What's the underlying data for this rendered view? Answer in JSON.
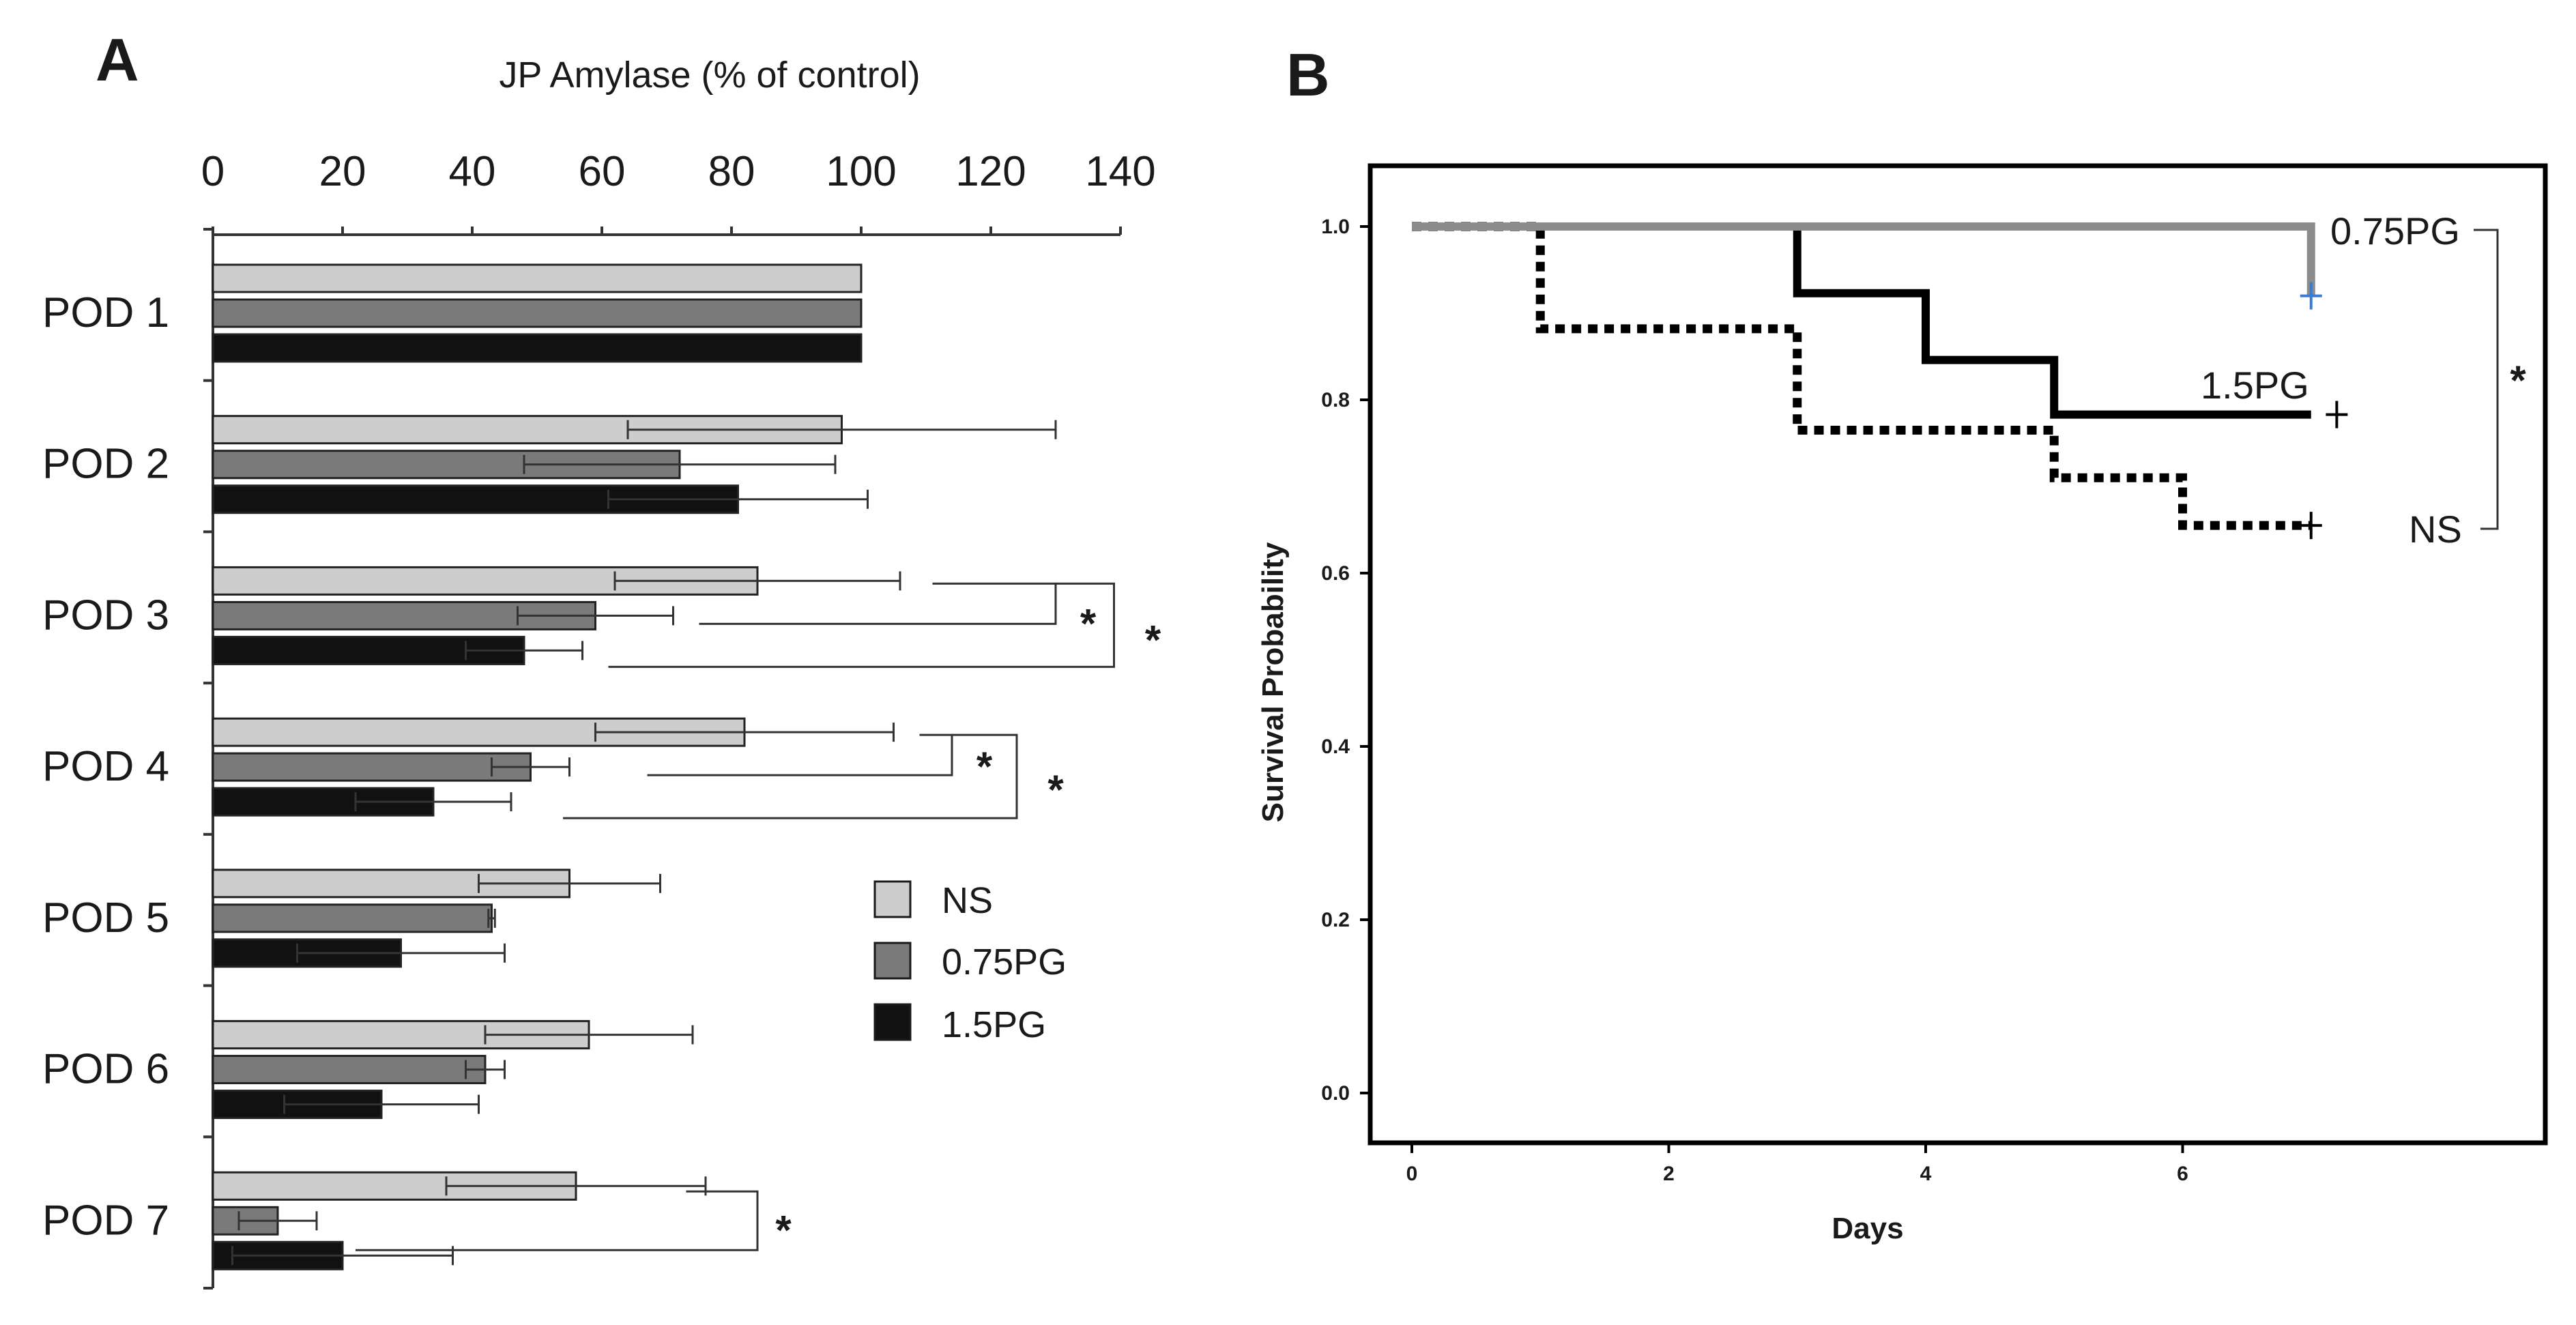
{
  "panels": {
    "a_letter": "A",
    "b_letter": "B"
  },
  "legend": [
    {
      "label": "NS",
      "color": "#cdcdcd"
    },
    {
      "label": "0.75PG",
      "color": "#7a7a7a"
    },
    {
      "label": "1.5PG",
      "color": "#111111"
    }
  ],
  "significance_mark": "*",
  "chart_data": [
    {
      "type": "bar",
      "orientation": "horizontal",
      "title": "",
      "xlabel": "JP Amylase (% of control)",
      "ylabel": "",
      "xlim": [
        0,
        140
      ],
      "x_ticks": [
        0,
        20,
        40,
        60,
        80,
        100,
        120,
        140
      ],
      "categories": [
        "POD 1",
        "POD 2",
        "POD 3",
        "POD 4",
        "POD 5",
        "POD 6",
        "POD 7"
      ],
      "series": [
        {
          "name": "NS",
          "values": [
            100,
            97,
            84,
            82,
            55,
            58,
            56
          ],
          "error": [
            0,
            33,
            22,
            23,
            14,
            16,
            20
          ]
        },
        {
          "name": "0.75PG",
          "values": [
            100,
            72,
            59,
            49,
            43,
            42,
            10
          ],
          "error": [
            0,
            24,
            12,
            6,
            0.5,
            3,
            6
          ]
        },
        {
          "name": "1.5PG",
          "values": [
            100,
            81,
            48,
            34,
            29,
            26,
            20
          ],
          "error": [
            0,
            20,
            9,
            12,
            16,
            15,
            17
          ]
        }
      ],
      "legend_position": "right",
      "significance": [
        {
          "category": "POD 3",
          "comparison": "0.75PG vs NS",
          "label": "*"
        },
        {
          "category": "POD 3",
          "comparison": "1.5PG vs NS",
          "label": "*"
        },
        {
          "category": "POD 4",
          "comparison": "0.75PG vs NS",
          "label": "*"
        },
        {
          "category": "POD 4",
          "comparison": "1.5PG vs NS",
          "label": "*"
        },
        {
          "category": "POD 7",
          "comparison": "1.5PG vs NS",
          "label": "*"
        }
      ]
    },
    {
      "type": "line",
      "subtype": "kaplan-meier step",
      "title": "",
      "xlabel": "Days",
      "ylabel": "Survival Probability",
      "xlim": [
        -0.5,
        8.8
      ],
      "ylim": [
        -0.05,
        1.07
      ],
      "x_ticks": [
        0,
        2,
        4,
        6
      ],
      "y_ticks": [
        "0.0",
        "0.2",
        "0.4",
        "0.6",
        "0.8",
        "1.0"
      ],
      "series": [
        {
          "name": "0.75PG",
          "style": "solid",
          "color": "#8c8c8c",
          "x": [
            0,
            7,
            7
          ],
          "y": [
            1.0,
            1.0,
            0.92
          ],
          "censor_x": 7,
          "censor_y": 0.92,
          "censor_color": "#3a7bd5"
        },
        {
          "name": "1.5PG",
          "style": "solid",
          "color": "#000000",
          "x": [
            0,
            3,
            3,
            4,
            4,
            5,
            5,
            7
          ],
          "y": [
            1.0,
            1.0,
            0.923,
            0.923,
            0.846,
            0.846,
            0.783,
            0.783
          ],
          "censor_x": 7.2,
          "censor_y": 0.783,
          "censor_color": "#000000"
        },
        {
          "name": "NS",
          "style": "dotted",
          "color": "#000000",
          "x": [
            0,
            1,
            1,
            3,
            3,
            5,
            5,
            6,
            6,
            7
          ],
          "y": [
            1.0,
            1.0,
            0.882,
            0.882,
            0.765,
            0.765,
            0.71,
            0.71,
            0.655,
            0.655
          ],
          "censor_x": 7,
          "censor_y": 0.655,
          "censor_color": "#000000"
        }
      ],
      "significance": [
        {
          "comparison": "0.75PG vs NS",
          "label": "*"
        }
      ]
    }
  ]
}
